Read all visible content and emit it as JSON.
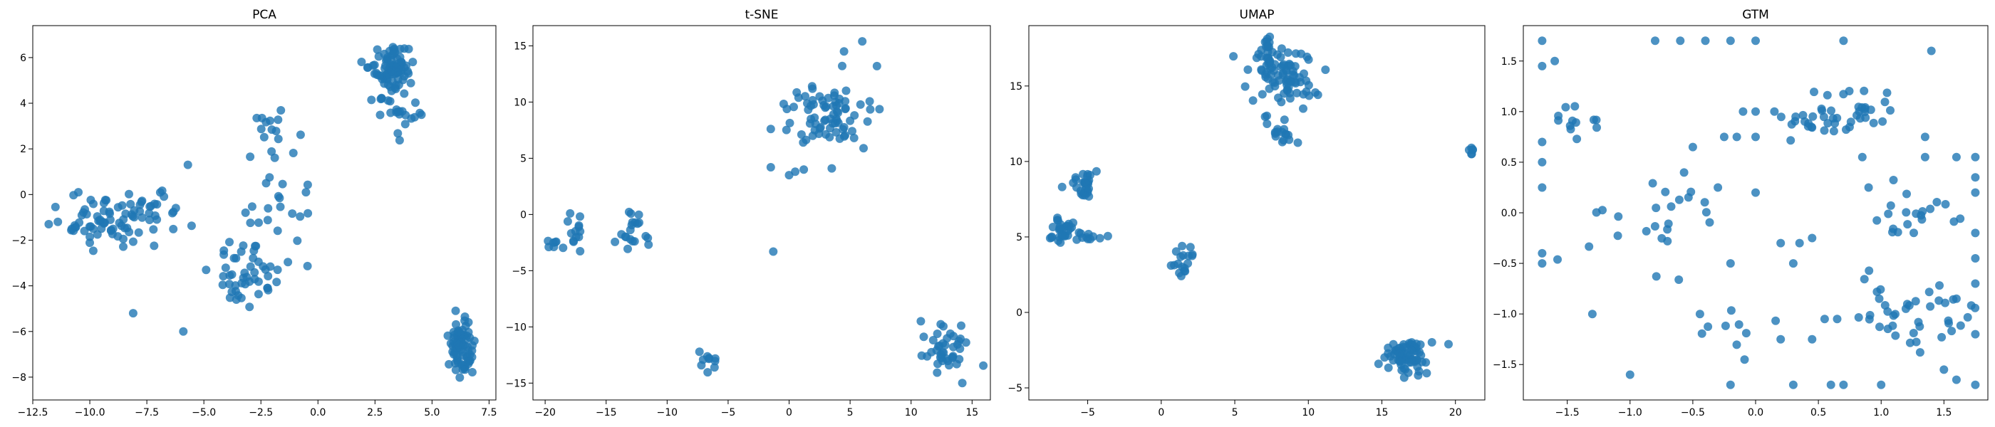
{
  "chart_data": [
    {
      "type": "scatter",
      "title": "PCA",
      "color": "#1f77b4",
      "xlim": [
        -12.5,
        7.8
      ],
      "ylim": [
        -9.0,
        7.4
      ],
      "xticks": [
        -12.5,
        -10.0,
        -7.5,
        -5.0,
        -2.5,
        0.0,
        2.5,
        5.0,
        7.5
      ],
      "xtick_labels": [
        "−12.5",
        "−10.0",
        "−7.5",
        "−5.0",
        "−2.5",
        "0.0",
        "2.5",
        "5.0",
        "7.5"
      ],
      "yticks": [
        -8,
        -6,
        -4,
        -2,
        0,
        2,
        4,
        6
      ],
      "ytick_labels": [
        "−8",
        "−6",
        "−4",
        "−2",
        "0",
        "2",
        "4",
        "6"
      ],
      "clusters": [
        {
          "cx": 3.2,
          "cy": 5.4,
          "sx": 0.45,
          "sy": 0.55,
          "n": 90,
          "seed": 11
        },
        {
          "cx": 3.6,
          "cy": 3.7,
          "sx": 0.35,
          "sy": 0.5,
          "n": 20,
          "seed": 12
        },
        {
          "cx": 6.3,
          "cy": -6.6,
          "sx": 0.25,
          "sy": 0.6,
          "n": 80,
          "seed": 13
        },
        {
          "cx": -9.0,
          "cy": -1.2,
          "sx": 1.1,
          "sy": 0.6,
          "n": 70,
          "seed": 14
        },
        {
          "cx": -7.0,
          "cy": -0.3,
          "sx": 0.6,
          "sy": 0.6,
          "n": 15,
          "seed": 15
        },
        {
          "cx": -3.0,
          "cy": -3.3,
          "sx": 0.8,
          "sy": 0.7,
          "n": 45,
          "seed": 16
        },
        {
          "cx": -2.0,
          "cy": 2.8,
          "sx": 0.6,
          "sy": 0.6,
          "n": 16,
          "seed": 17
        },
        {
          "cx": -1.5,
          "cy": -0.5,
          "sx": 0.9,
          "sy": 1.2,
          "n": 22,
          "seed": 18
        }
      ],
      "points": [
        [
          -8.1,
          -5.2
        ],
        [
          -5.9,
          -6.0
        ],
        [
          -5.7,
          1.3
        ],
        [
          -10.5,
          0.1
        ],
        [
          -11.8,
          -1.3
        ],
        [
          -11.4,
          -1.2
        ],
        [
          -4.9,
          -3.3
        ]
      ]
    },
    {
      "type": "scatter",
      "title": "t-SNE",
      "color": "#1f77b4",
      "xlim": [
        -21.0,
        16.5
      ],
      "ylim": [
        -16.5,
        16.8
      ],
      "xticks": [
        -20,
        -15,
        -10,
        -5,
        0,
        5,
        10,
        15
      ],
      "xtick_labels": [
        "−20",
        "−15",
        "−10",
        "−5",
        "0",
        "5",
        "10",
        "15"
      ],
      "yticks": [
        -15,
        -10,
        -5,
        0,
        5,
        10,
        15
      ],
      "ytick_labels": [
        "−15",
        "−10",
        "−5",
        "0",
        "5",
        "10",
        "15"
      ],
      "clusters": [
        {
          "cx": 3.5,
          "cy": 9.0,
          "sx": 1.8,
          "sy": 1.4,
          "n": 75,
          "seed": 21
        },
        {
          "cx": 12.8,
          "cy": -12.0,
          "sx": 1.0,
          "sy": 0.9,
          "n": 40,
          "seed": 22
        },
        {
          "cx": -6.5,
          "cy": -13.0,
          "sx": 0.5,
          "sy": 0.8,
          "n": 10,
          "seed": 23
        },
        {
          "cx": -19.5,
          "cy": -2.6,
          "sx": 0.25,
          "sy": 0.25,
          "n": 6,
          "seed": 24
        },
        {
          "cx": -17.5,
          "cy": -1.5,
          "sx": 0.4,
          "sy": 0.9,
          "n": 14,
          "seed": 25
        },
        {
          "cx": -12.8,
          "cy": -1.3,
          "sx": 0.6,
          "sy": 1.0,
          "n": 20,
          "seed": 26
        }
      ],
      "points": [
        [
          6.0,
          15.4
        ],
        [
          4.5,
          14.5
        ],
        [
          7.2,
          13.2
        ],
        [
          -1.3,
          -3.3
        ],
        [
          -1.5,
          7.6
        ],
        [
          0.0,
          3.5
        ],
        [
          0.5,
          3.8
        ],
        [
          -1.5,
          4.2
        ],
        [
          1.2,
          4.0
        ],
        [
          3.5,
          4.1
        ],
        [
          14.2,
          -15.0
        ],
        [
          10.8,
          -9.5
        ]
      ]
    },
    {
      "type": "scatter",
      "title": "UMAP",
      "color": "#1f77b4",
      "xlim": [
        -9.0,
        22.0
      ],
      "ylim": [
        -5.8,
        19.0
      ],
      "xticks": [
        -5,
        0,
        5,
        10,
        15,
        20
      ],
      "xtick_labels": [
        "−5",
        "0",
        "5",
        "10",
        "15",
        "20"
      ],
      "yticks": [
        -5,
        0,
        5,
        10,
        15
      ],
      "ytick_labels": [
        "−5",
        "0",
        "5",
        "10",
        "15"
      ],
      "clusters": [
        {
          "cx": 8.5,
          "cy": 15.5,
          "sx": 1.2,
          "sy": 1.0,
          "n": 80,
          "seed": 31
        },
        {
          "cx": 7.2,
          "cy": 17.3,
          "sx": 0.4,
          "sy": 0.5,
          "n": 20,
          "seed": 32
        },
        {
          "cx": 8.0,
          "cy": 11.7,
          "sx": 0.5,
          "sy": 0.3,
          "n": 14,
          "seed": 33
        },
        {
          "cx": -5.2,
          "cy": 8.5,
          "sx": 0.5,
          "sy": 0.5,
          "n": 30,
          "seed": 34
        },
        {
          "cx": -6.8,
          "cy": 5.5,
          "sx": 0.4,
          "sy": 0.5,
          "n": 30,
          "seed": 35
        },
        {
          "cx": -4.9,
          "cy": 5.1,
          "sx": 0.4,
          "sy": 0.2,
          "n": 10,
          "seed": 36
        },
        {
          "cx": 1.5,
          "cy": 3.4,
          "sx": 0.4,
          "sy": 0.5,
          "n": 18,
          "seed": 37
        },
        {
          "cx": 16.8,
          "cy": -2.8,
          "sx": 0.7,
          "sy": 0.6,
          "n": 70,
          "seed": 38
        },
        {
          "cx": 21.0,
          "cy": 10.9,
          "sx": 0.12,
          "sy": 0.2,
          "n": 6,
          "seed": 39
        }
      ],
      "points": []
    },
    {
      "type": "scatter",
      "title": "GTM",
      "color": "#1f77b4",
      "xlim": [
        -1.85,
        1.85
      ],
      "ylim": [
        -1.85,
        1.85
      ],
      "xticks": [
        -1.5,
        -1.0,
        -0.5,
        0.0,
        0.5,
        1.0,
        1.5
      ],
      "xtick_labels": [
        "−1.5",
        "−1.0",
        "−0.5",
        "0.0",
        "0.5",
        "1.0",
        "1.5"
      ],
      "yticks": [
        -1.5,
        -1.0,
        -0.5,
        0.0,
        0.5,
        1.0,
        1.5
      ],
      "ytick_labels": [
        "−1.5",
        "−1.0",
        "−0.5",
        "0.0",
        "0.5",
        "1.0",
        "1.5"
      ],
      "clusters": [
        {
          "cx": 0.65,
          "cy": 0.95,
          "sx": 0.25,
          "sy": 0.15,
          "n": 45,
          "seed": 41
        },
        {
          "cx": 1.25,
          "cy": -1.05,
          "sx": 0.25,
          "sy": 0.2,
          "n": 40,
          "seed": 42
        },
        {
          "cx": -0.85,
          "cy": -0.1,
          "sx": 0.25,
          "sy": 0.25,
          "n": 25,
          "seed": 43
        },
        {
          "cx": 1.3,
          "cy": 0.0,
          "sx": 0.2,
          "sy": 0.15,
          "n": 20,
          "seed": 44
        },
        {
          "cx": -1.4,
          "cy": 0.9,
          "sx": 0.15,
          "sy": 0.15,
          "n": 12,
          "seed": 45
        },
        {
          "cx": -0.3,
          "cy": -1.1,
          "sx": 0.2,
          "sy": 0.12,
          "n": 10,
          "seed": 46
        }
      ],
      "points": [
        [
          -1.7,
          1.7
        ],
        [
          -1.6,
          1.5
        ],
        [
          -1.7,
          1.45
        ],
        [
          -1.7,
          0.7
        ],
        [
          -1.7,
          0.5
        ],
        [
          -1.7,
          0.25
        ],
        [
          -1.7,
          -0.4
        ],
        [
          -1.7,
          -0.5
        ],
        [
          -1.3,
          -1.0
        ],
        [
          -0.8,
          1.7
        ],
        [
          -0.6,
          1.7
        ],
        [
          -0.4,
          1.7
        ],
        [
          -0.2,
          1.7
        ],
        [
          0.0,
          1.7
        ],
        [
          0.0,
          1.0
        ],
        [
          -0.1,
          1.0
        ],
        [
          0.15,
          1.0
        ],
        [
          0.7,
          1.7
        ],
        [
          1.4,
          1.6
        ],
        [
          -0.15,
          0.75
        ],
        [
          -0.25,
          0.75
        ],
        [
          0.0,
          0.75
        ],
        [
          -0.5,
          0.65
        ],
        [
          0.0,
          0.2
        ],
        [
          0.2,
          -0.3
        ],
        [
          0.3,
          -0.5
        ],
        [
          0.35,
          -0.3
        ],
        [
          -0.3,
          0.25
        ],
        [
          -0.2,
          -0.5
        ],
        [
          0.45,
          -0.25
        ],
        [
          0.55,
          -1.05
        ],
        [
          0.65,
          -1.05
        ],
        [
          0.45,
          -1.25
        ],
        [
          0.2,
          -1.25
        ],
        [
          -1.0,
          -1.6
        ],
        [
          -0.2,
          -1.7
        ],
        [
          0.3,
          -1.7
        ],
        [
          0.6,
          -1.7
        ],
        [
          0.7,
          -1.7
        ],
        [
          1.0,
          -1.7
        ],
        [
          1.5,
          -1.55
        ],
        [
          1.6,
          -1.65
        ],
        [
          1.75,
          -1.7
        ],
        [
          1.75,
          0.55
        ],
        [
          1.75,
          0.35
        ],
        [
          1.75,
          0.2
        ],
        [
          1.75,
          -0.2
        ],
        [
          1.75,
          -0.7
        ],
        [
          1.75,
          -1.2
        ],
        [
          1.75,
          -0.45
        ],
        [
          1.6,
          -0.85
        ],
        [
          0.9,
          0.25
        ],
        [
          0.85,
          0.55
        ],
        [
          1.35,
          0.55
        ],
        [
          1.35,
          0.75
        ],
        [
          1.6,
          0.55
        ]
      ]
    }
  ]
}
